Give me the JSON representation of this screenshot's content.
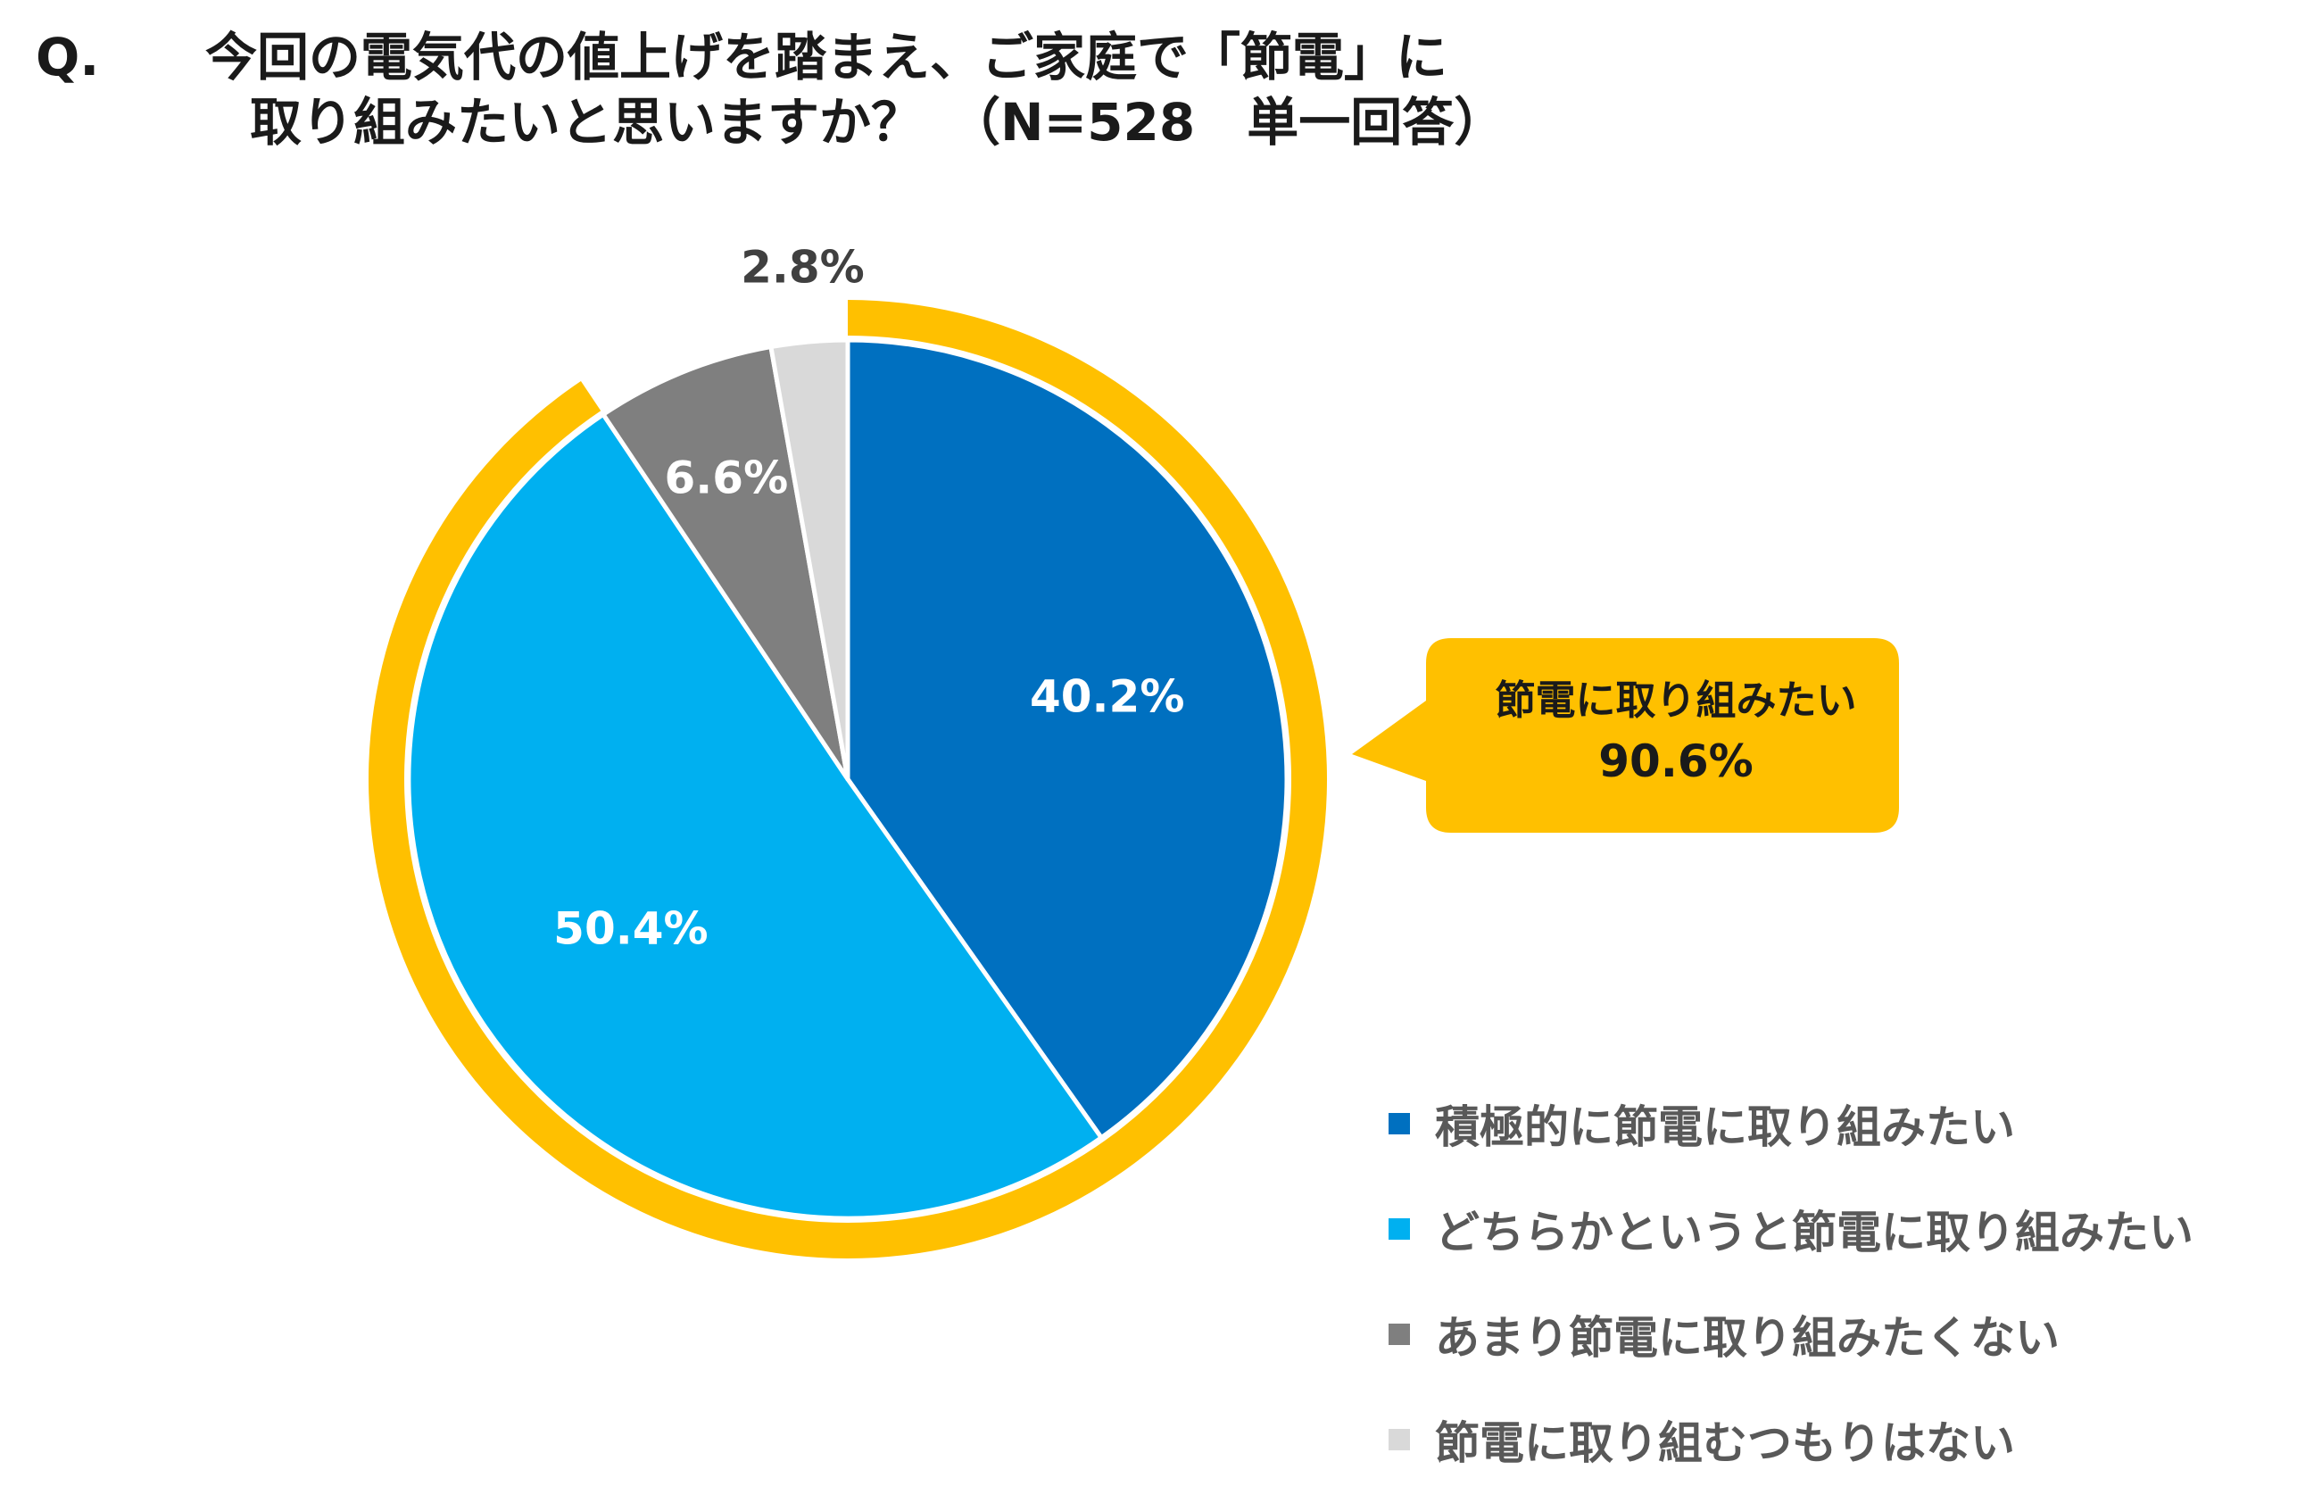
{
  "title": {
    "q_label": "Q.",
    "line1": "今回の電気代の値上げを踏まえ、ご家庭で「節電」に",
    "line2": "取り組みたいと思いますか？　（N=528　単一回答）"
  },
  "chart_data": {
    "type": "pie",
    "title": "今回の電気代の値上げを踏まえ、ご家庭で「節電」に取り組みたいと思いますか？（N=528 単一回答）",
    "start": "12 o'clock, clockwise",
    "slices": [
      {
        "label": "積極的に節電に取り組みたい",
        "value": 40.2,
        "value_label": "40.2%",
        "color": "#0070C0",
        "label_color": "#ffffff"
      },
      {
        "label": "どちらかというと節電に取り組みたい",
        "value": 50.4,
        "value_label": "50.4%",
        "color": "#00B0F0",
        "label_color": "#ffffff"
      },
      {
        "label": "あまり節電に取り組みたくない",
        "value": 6.6,
        "value_label": "6.6%",
        "color": "#7F7F7F",
        "label_color": "#ffffff"
      },
      {
        "label": "節電に取り組むつもりはない",
        "value": 2.8,
        "value_label": "2.8%",
        "color": "#D9D9D9",
        "label_color": "#404040"
      }
    ],
    "highlight": {
      "label": "節電に取り組みたい",
      "value": 90.6,
      "value_label": "90.6%",
      "covers": [
        "積極的に節電に取り組みたい",
        "どちらかというと節電に取り組みたい"
      ],
      "color": "#FFC000"
    },
    "legend_position": "bottom-right"
  }
}
